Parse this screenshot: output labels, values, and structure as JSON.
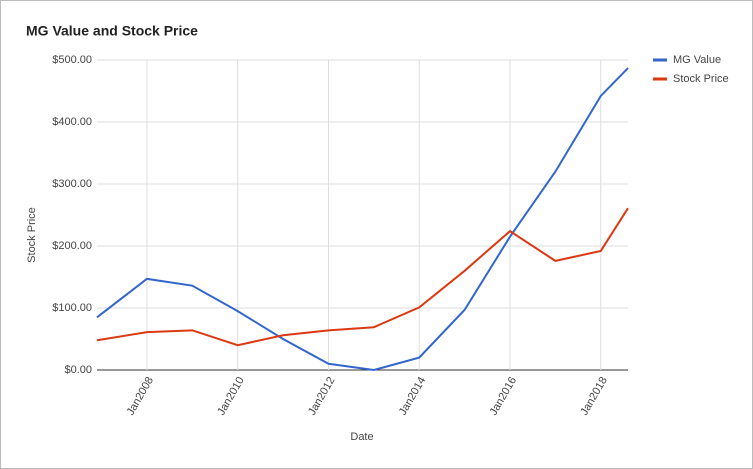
{
  "chart_data": {
    "type": "line",
    "title": "MG Value and Stock Price",
    "x_label": "Date",
    "y_label": "Stock Price",
    "x": [
      2006.9,
      2008,
      2009,
      2010,
      2011,
      2012,
      2013,
      2014,
      2015,
      2016,
      2017,
      2018,
      2018.6
    ],
    "xlim": [
      2006.9,
      2018.6
    ],
    "xticks": [
      {
        "value": 2008,
        "label": "Jan2008"
      },
      {
        "value": 2010,
        "label": "Jan2010"
      },
      {
        "value": 2012,
        "label": "Jan2012"
      },
      {
        "value": 2014,
        "label": "Jan2014"
      },
      {
        "value": 2016,
        "label": "Jan2016"
      },
      {
        "value": 2018,
        "label": "Jan2018"
      }
    ],
    "ylim": [
      0,
      500
    ],
    "yticks": [
      {
        "value": 0,
        "label": "$0.00"
      },
      {
        "value": 100,
        "label": "$100.00"
      },
      {
        "value": 200,
        "label": "$200.00"
      },
      {
        "value": 300,
        "label": "$300.00"
      },
      {
        "value": 400,
        "label": "$400.00"
      },
      {
        "value": 500,
        "label": "$500.00"
      }
    ],
    "grid": true,
    "legend": "right",
    "series": [
      {
        "name": "MG Value",
        "color": "#3366cc",
        "values": [
          85,
          147,
          136,
          95,
          50,
          10,
          0,
          20,
          97,
          215,
          320,
          442,
          487
        ]
      },
      {
        "name": "Stock Price",
        "color": "#dc3912",
        "values": [
          48,
          61,
          64,
          40,
          56,
          64,
          69,
          101,
          160,
          224,
          176,
          192,
          261
        ]
      }
    ]
  }
}
